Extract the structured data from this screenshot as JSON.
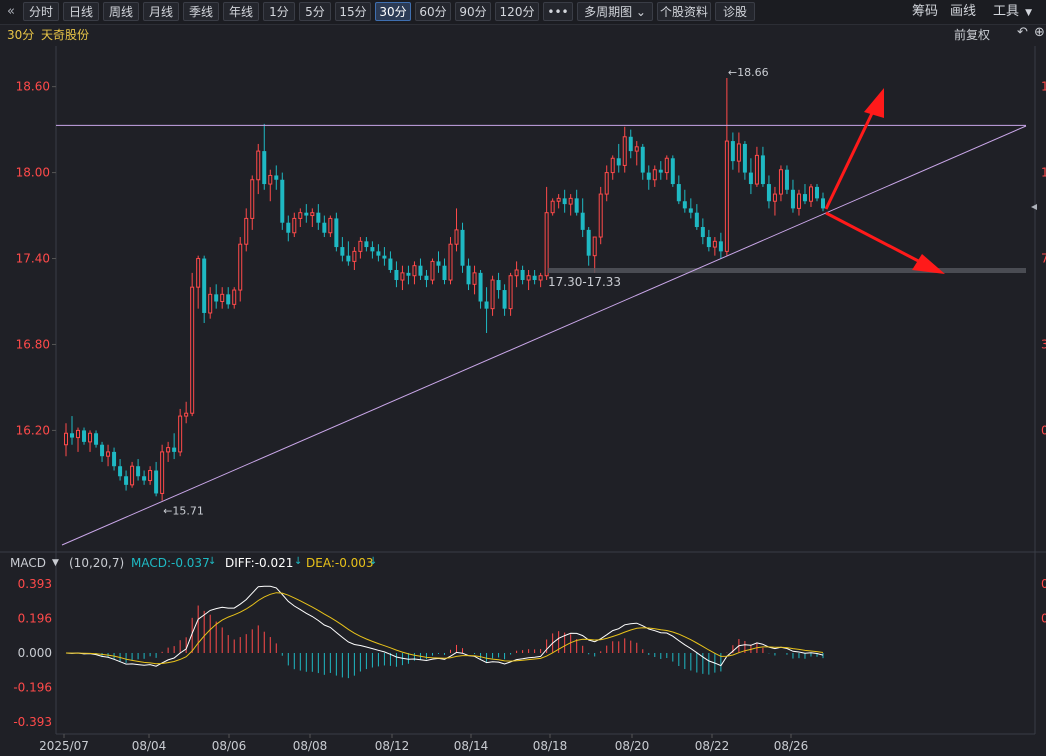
{
  "toolbar": {
    "back_icon": "double-chevron-left-icon",
    "buttons": [
      {
        "label": "分时",
        "active": false
      },
      {
        "label": "日线",
        "active": false
      },
      {
        "label": "周线",
        "active": false
      },
      {
        "label": "月线",
        "active": false
      },
      {
        "label": "季线",
        "active": false
      },
      {
        "label": "年线",
        "active": false
      },
      {
        "label": "1分",
        "active": false
      },
      {
        "label": "5分",
        "active": false
      },
      {
        "label": "15分",
        "active": false
      },
      {
        "label": "30分",
        "active": true
      },
      {
        "label": "60分",
        "active": false
      },
      {
        "label": "90分",
        "active": false
      },
      {
        "label": "120分",
        "active": false
      },
      {
        "label": "•••",
        "active": false
      },
      {
        "label": "多周期图",
        "active": false
      },
      {
        "label": "个股资料",
        "active": false
      },
      {
        "label": "诊股",
        "active": false
      }
    ],
    "right": {
      "chips": "筹码",
      "draw": "画线",
      "tools": "工具"
    }
  },
  "info": {
    "period": "30分",
    "stock_name": "天奇股份",
    "adjust": "前复权",
    "undo_icon": "undo-icon",
    "add_icon": "plus-circle-icon"
  },
  "price_axis": {
    "labels": [
      "18.60",
      "18.00",
      "17.40",
      "16.80",
      "16.20"
    ],
    "values": [
      18.6,
      18.0,
      17.4,
      16.8,
      16.2
    ],
    "right_partial": [
      "1",
      "1",
      "7",
      "3",
      "0"
    ]
  },
  "annotations": {
    "high_label": "←18.66",
    "low_label": "←15.71",
    "support_label": "17.30-17.33",
    "high_value": 18.66,
    "low_value": 15.71
  },
  "macd": {
    "title": "MACD",
    "params": "(10,20,7)",
    "macd_value": "MACD:-0.037",
    "diff_value": "DIFF:-0.021",
    "dea_value": "DEA:-0.003",
    "axis_labels": [
      "0.393",
      "0.196",
      "0.000",
      "-0.196",
      "-0.393"
    ],
    "axis_values": [
      0.393,
      0.196,
      0.0,
      -0.196,
      -0.393
    ],
    "right_partial": [
      "0",
      "0"
    ]
  },
  "x_axis": {
    "labels": [
      "2025/07",
      "08/04",
      "08/06",
      "08/08",
      "08/12",
      "08/14",
      "08/18",
      "08/20",
      "08/22",
      "08/26"
    ]
  },
  "colors": {
    "up": "#ff4a4a",
    "down": "#1fb9c3",
    "diff": "#ffffff",
    "dea": "#e8c21a",
    "trendline": "#c9a6e8",
    "arrow": "#ff1a1a",
    "axis_red": "#ff4a4a",
    "macd_label": "#1fb9c3"
  },
  "chart_data": {
    "type": "candlestick",
    "x_labels": [
      "2025/07",
      "08/04",
      "08/06",
      "08/08",
      "08/12",
      "08/14",
      "08/18",
      "08/20",
      "08/22",
      "08/26"
    ],
    "ylim": [
      15.55,
      18.8
    ],
    "ohlc": [
      [
        16.1,
        16.25,
        16.02,
        16.18
      ],
      [
        16.18,
        16.3,
        16.1,
        16.15
      ],
      [
        16.15,
        16.22,
        16.05,
        16.2
      ],
      [
        16.2,
        16.22,
        16.1,
        16.12
      ],
      [
        16.12,
        16.2,
        16.05,
        16.18
      ],
      [
        16.18,
        16.2,
        16.08,
        16.1
      ],
      [
        16.1,
        16.12,
        15.98,
        16.02
      ],
      [
        16.02,
        16.1,
        15.95,
        16.05
      ],
      [
        16.05,
        16.08,
        15.92,
        15.95
      ],
      [
        15.95,
        16.0,
        15.85,
        15.88
      ],
      [
        15.88,
        15.92,
        15.78,
        15.82
      ],
      [
        15.82,
        15.98,
        15.8,
        15.95
      ],
      [
        15.95,
        16.0,
        15.85,
        15.88
      ],
      [
        15.88,
        15.92,
        15.82,
        15.85
      ],
      [
        15.85,
        15.95,
        15.82,
        15.92
      ],
      [
        15.92,
        15.98,
        15.74,
        15.76
      ],
      [
        15.76,
        16.1,
        15.71,
        16.05
      ],
      [
        16.05,
        16.12,
        15.98,
        16.08
      ],
      [
        16.08,
        16.18,
        16.0,
        16.05
      ],
      [
        16.05,
        16.35,
        16.02,
        16.3
      ],
      [
        16.3,
        16.4,
        16.25,
        16.32
      ],
      [
        16.32,
        17.3,
        16.3,
        17.2
      ],
      [
        17.2,
        17.42,
        17.05,
        17.4
      ],
      [
        17.4,
        17.42,
        16.95,
        17.02
      ],
      [
        17.02,
        17.2,
        16.98,
        17.15
      ],
      [
        17.15,
        17.22,
        17.05,
        17.1
      ],
      [
        17.1,
        17.2,
        17.05,
        17.15
      ],
      [
        17.15,
        17.2,
        17.05,
        17.08
      ],
      [
        17.08,
        17.2,
        17.05,
        17.18
      ],
      [
        17.18,
        17.55,
        17.1,
        17.5
      ],
      [
        17.5,
        17.75,
        17.45,
        17.68
      ],
      [
        17.68,
        17.98,
        17.6,
        17.95
      ],
      [
        17.95,
        18.2,
        17.85,
        18.15
      ],
      [
        18.15,
        18.34,
        17.88,
        17.92
      ],
      [
        17.92,
        18.02,
        17.8,
        17.98
      ],
      [
        17.98,
        18.05,
        17.88,
        17.95
      ],
      [
        17.95,
        18.0,
        17.6,
        17.65
      ],
      [
        17.65,
        17.7,
        17.52,
        17.58
      ],
      [
        17.58,
        17.72,
        17.55,
        17.68
      ],
      [
        17.68,
        17.75,
        17.62,
        17.72
      ],
      [
        17.72,
        17.78,
        17.65,
        17.7
      ],
      [
        17.7,
        17.75,
        17.62,
        17.72
      ],
      [
        17.72,
        17.78,
        17.6,
        17.65
      ],
      [
        17.65,
        17.7,
        17.55,
        17.58
      ],
      [
        17.58,
        17.7,
        17.55,
        17.68
      ],
      [
        17.68,
        17.72,
        17.45,
        17.48
      ],
      [
        17.48,
        17.55,
        17.38,
        17.42
      ],
      [
        17.42,
        17.52,
        17.35,
        17.38
      ],
      [
        17.38,
        17.48,
        17.32,
        17.45
      ],
      [
        17.45,
        17.55,
        17.4,
        17.52
      ],
      [
        17.52,
        17.55,
        17.45,
        17.48
      ],
      [
        17.48,
        17.52,
        17.4,
        17.45
      ],
      [
        17.45,
        17.5,
        17.38,
        17.42
      ],
      [
        17.42,
        17.48,
        17.35,
        17.4
      ],
      [
        17.4,
        17.45,
        17.3,
        17.32
      ],
      [
        17.32,
        17.38,
        17.2,
        17.25
      ],
      [
        17.25,
        17.35,
        17.18,
        17.3
      ],
      [
        17.3,
        17.35,
        17.22,
        17.28
      ],
      [
        17.28,
        17.38,
        17.22,
        17.35
      ],
      [
        17.35,
        17.4,
        17.25,
        17.28
      ],
      [
        17.28,
        17.32,
        17.2,
        17.25
      ],
      [
        17.25,
        17.4,
        17.22,
        17.38
      ],
      [
        17.38,
        17.45,
        17.3,
        17.35
      ],
      [
        17.35,
        17.4,
        17.22,
        17.25
      ],
      [
        17.25,
        17.55,
        17.22,
        17.5
      ],
      [
        17.5,
        17.75,
        17.45,
        17.6
      ],
      [
        17.6,
        17.65,
        17.3,
        17.35
      ],
      [
        17.35,
        17.4,
        17.18,
        17.22
      ],
      [
        17.22,
        17.35,
        17.15,
        17.3
      ],
      [
        17.3,
        17.32,
        17.05,
        17.1
      ],
      [
        17.1,
        17.2,
        16.88,
        17.05
      ],
      [
        17.05,
        17.28,
        17.0,
        17.25
      ],
      [
        17.25,
        17.3,
        17.12,
        17.18
      ],
      [
        17.18,
        17.22,
        17.0,
        17.05
      ],
      [
        17.05,
        17.3,
        17.0,
        17.28
      ],
      [
        17.28,
        17.38,
        17.2,
        17.32
      ],
      [
        17.32,
        17.35,
        17.22,
        17.25
      ],
      [
        17.25,
        17.32,
        17.18,
        17.28
      ],
      [
        17.28,
        17.32,
        17.22,
        17.25
      ],
      [
        17.25,
        17.3,
        17.2,
        17.28
      ],
      [
        17.28,
        17.9,
        17.25,
        17.72
      ],
      [
        17.72,
        17.82,
        17.7,
        17.8
      ],
      [
        17.8,
        17.85,
        17.75,
        17.82
      ],
      [
        17.82,
        17.88,
        17.72,
        17.78
      ],
      [
        17.78,
        17.85,
        17.7,
        17.82
      ],
      [
        17.82,
        17.88,
        17.7,
        17.72
      ],
      [
        17.72,
        17.82,
        17.55,
        17.6
      ],
      [
        17.6,
        17.62,
        17.35,
        17.42
      ],
      [
        17.42,
        17.55,
        17.3,
        17.55
      ],
      [
        17.55,
        17.9,
        17.5,
        17.85
      ],
      [
        17.85,
        18.05,
        17.8,
        18.0
      ],
      [
        18.0,
        18.12,
        17.95,
        18.1
      ],
      [
        18.1,
        18.2,
        18.0,
        18.05
      ],
      [
        18.05,
        18.32,
        18.0,
        18.25
      ],
      [
        18.25,
        18.3,
        18.1,
        18.15
      ],
      [
        18.15,
        18.22,
        18.05,
        18.18
      ],
      [
        18.18,
        18.2,
        17.95,
        18.0
      ],
      [
        18.0,
        18.05,
        17.88,
        17.95
      ],
      [
        17.95,
        18.05,
        17.9,
        18.02
      ],
      [
        18.02,
        18.08,
        17.95,
        18.0
      ],
      [
        18.0,
        18.12,
        17.95,
        18.1
      ],
      [
        18.1,
        18.12,
        17.9,
        17.92
      ],
      [
        17.92,
        17.98,
        17.78,
        17.8
      ],
      [
        17.8,
        17.88,
        17.72,
        17.75
      ],
      [
        17.75,
        17.82,
        17.68,
        17.72
      ],
      [
        17.72,
        17.78,
        17.6,
        17.62
      ],
      [
        17.62,
        17.68,
        17.5,
        17.55
      ],
      [
        17.55,
        17.6,
        17.45,
        17.48
      ],
      [
        17.48,
        17.55,
        17.42,
        17.52
      ],
      [
        17.52,
        17.58,
        17.4,
        17.45
      ],
      [
        17.45,
        18.66,
        17.42,
        18.22
      ],
      [
        18.22,
        18.28,
        18.02,
        18.08
      ],
      [
        18.08,
        18.28,
        18.0,
        18.2
      ],
      [
        18.2,
        18.22,
        17.95,
        18.0
      ],
      [
        18.0,
        18.1,
        17.85,
        17.92
      ],
      [
        17.92,
        18.18,
        17.9,
        18.12
      ],
      [
        18.12,
        18.18,
        17.9,
        17.92
      ],
      [
        17.92,
        17.98,
        17.75,
        17.8
      ],
      [
        17.8,
        17.9,
        17.7,
        17.85
      ],
      [
        17.85,
        18.05,
        17.8,
        18.02
      ],
      [
        18.02,
        18.05,
        17.85,
        17.88
      ],
      [
        17.88,
        17.95,
        17.72,
        17.75
      ],
      [
        17.75,
        17.88,
        17.7,
        17.85
      ],
      [
        17.85,
        17.92,
        17.78,
        17.8
      ],
      [
        17.8,
        17.92,
        17.76,
        17.9
      ],
      [
        17.9,
        17.92,
        17.8,
        17.82
      ],
      [
        17.82,
        17.86,
        17.73,
        17.75
      ]
    ],
    "trendline_points": [
      [
        0,
        15.35
      ],
      [
        130,
        18.35
      ]
    ],
    "resistance": 18.33,
    "support_band": [
      17.3,
      17.33
    ],
    "macd_series": {
      "diff_start": 0.0,
      "dea_start": 0.0,
      "last_macd": -0.037,
      "last_diff": -0.021,
      "last_dea": -0.003
    }
  }
}
